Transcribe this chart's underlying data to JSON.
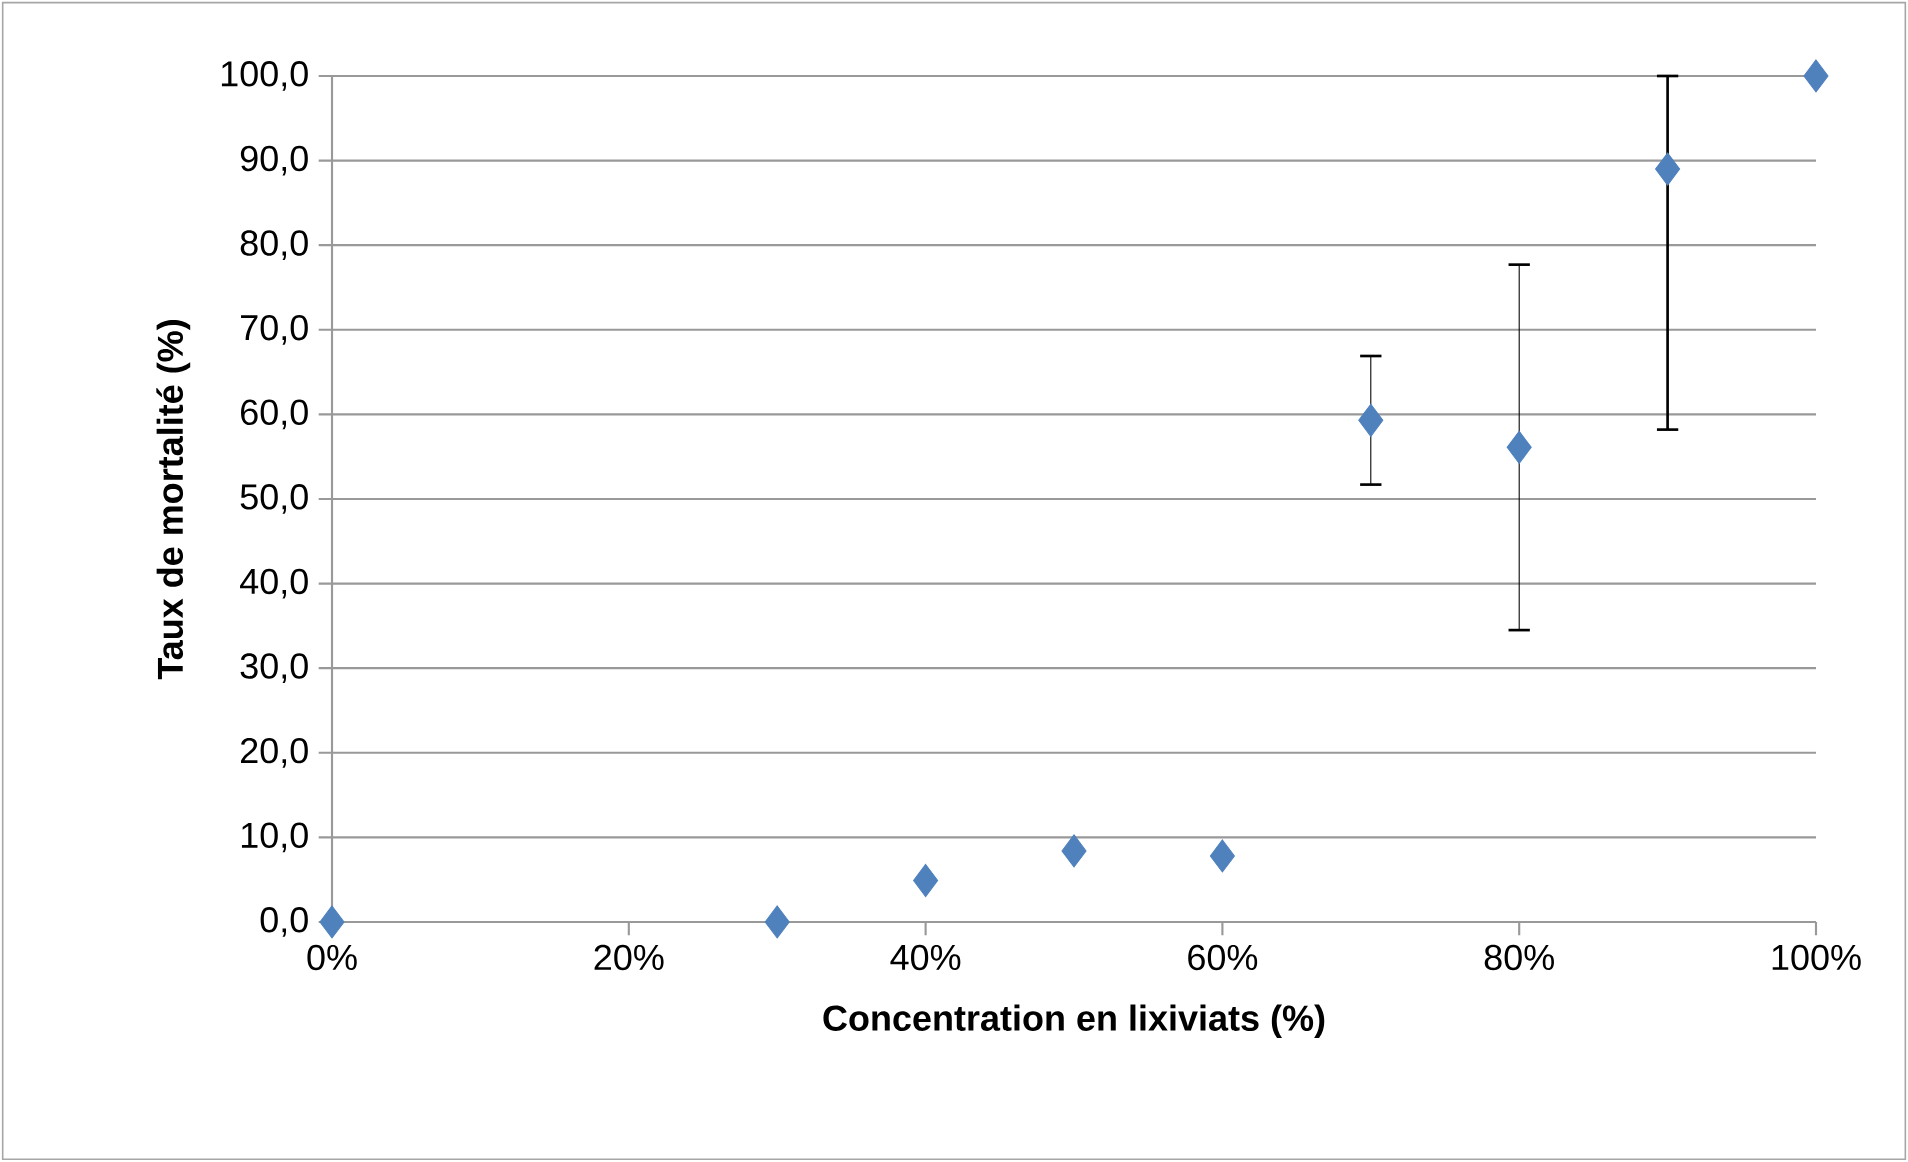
{
  "chart_data": {
    "type": "scatter",
    "xlabel": "Concentration en lixiviats (%)",
    "ylabel": "Taux de mortalité (%)",
    "x": [
      0,
      30,
      40,
      50,
      60,
      70,
      80,
      90,
      100
    ],
    "values": [
      0,
      0,
      4.9,
      8.4,
      7.8,
      59.3,
      56.1,
      89.0,
      100
    ],
    "errors": [
      null,
      null,
      null,
      null,
      null,
      7.6,
      21.6,
      [
        58.2,
        100
      ],
      null
    ],
    "color": "#4f81bd",
    "marker": "diamond",
    "grid": "y",
    "xlim": [
      0,
      100
    ],
    "xticks": [
      {
        "value": 0,
        "label": "0%"
      },
      {
        "value": 20,
        "label": "20%"
      },
      {
        "value": 40,
        "label": "40%"
      },
      {
        "value": 60,
        "label": "60%"
      },
      {
        "value": 80,
        "label": "80%"
      },
      {
        "value": 100,
        "label": "100%"
      }
    ],
    "ylim": [
      0,
      100
    ],
    "yticks": [
      {
        "value": 0,
        "label": "0,0"
      },
      {
        "value": 10,
        "label": "10,0"
      },
      {
        "value": 20,
        "label": "20,0"
      },
      {
        "value": 30,
        "label": "30,0"
      },
      {
        "value": 40,
        "label": "40,0"
      },
      {
        "value": 50,
        "label": "50,0"
      },
      {
        "value": 60,
        "label": "60,0"
      },
      {
        "value": 70,
        "label": "70,0"
      },
      {
        "value": 80,
        "label": "80,0"
      },
      {
        "value": 90,
        "label": "90,0"
      },
      {
        "value": 100,
        "label": "100,0"
      }
    ]
  }
}
